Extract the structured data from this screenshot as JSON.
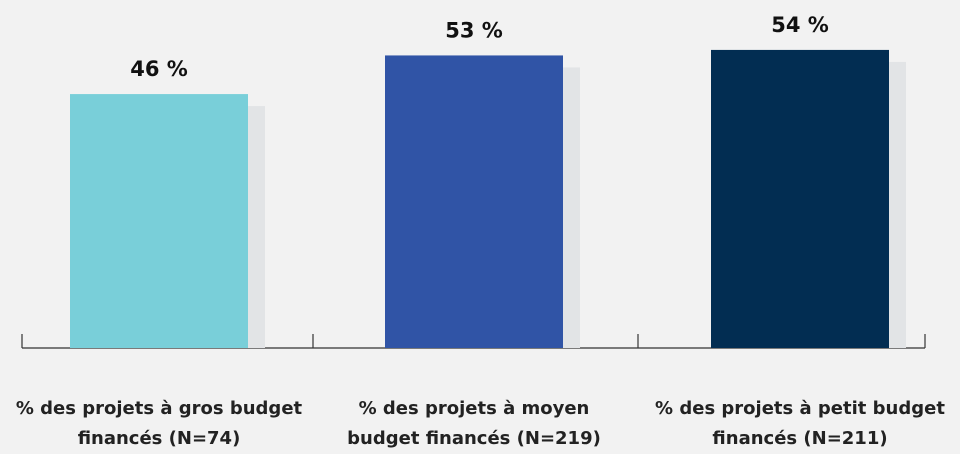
{
  "chart_data": {
    "type": "bar",
    "categories": [
      "% des projets à gros budget financés (N=74)",
      "% des projets à moyen budget financés (N=219)",
      "% des projets à petit budget financés (N=211)"
    ],
    "values": [
      46,
      53,
      54
    ],
    "value_labels": [
      "46 %",
      "53 %",
      "54 %"
    ],
    "colors": [
      "#79cfd9",
      "#3054a6",
      "#022d52"
    ]
  }
}
